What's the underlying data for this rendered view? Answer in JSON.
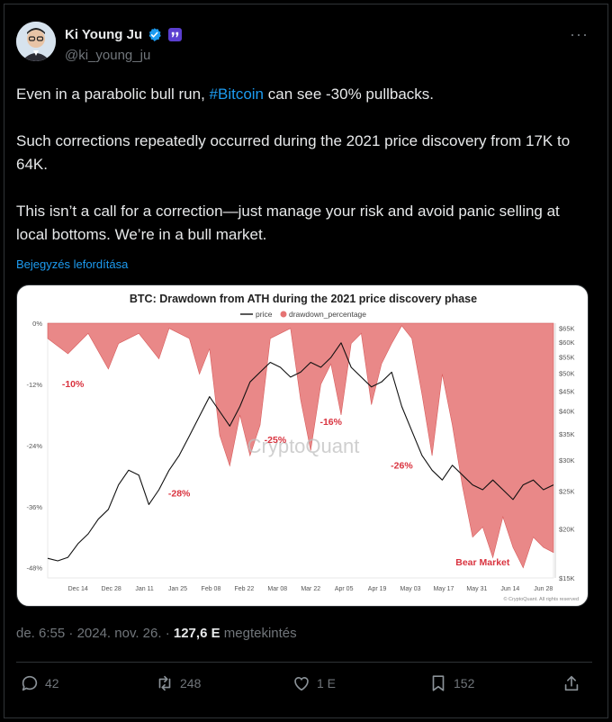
{
  "author": {
    "name": "Ki Young Ju",
    "handle": "@ki_young_ju"
  },
  "tweet": {
    "line1_before": "Even in a parabolic bull run, ",
    "hashtag": "#Bitcoin",
    "line1_after": " can see -30% pullbacks.",
    "paragraph2": "Such corrections repeatedly occurred during the 2021 price discovery from 17K to 64K.",
    "paragraph3": "This isn’t a call for a correction—just manage your risk and avoid panic selling at local bottoms. We’re in a bull market.",
    "translate_label": "Bejegyzés lefordítása"
  },
  "meta": {
    "time": "de. 6:55",
    "sep1": " · ",
    "date": "2024. nov. 26.",
    "sep2": " · ",
    "views": "127,6 E",
    "views_label": " megtekintés"
  },
  "actions": {
    "replies": "42",
    "reposts": "248",
    "likes": "1 E",
    "bookmarks": "152"
  },
  "colors": {
    "accent": "#1d9bf0",
    "drawdown": "#e57373",
    "annotation": "#d9333f"
  },
  "chart_data": {
    "type": "area",
    "title": "BTC: Drawdown from ATH during the 2021 price discovery phase",
    "legend": [
      "price",
      "drawdown_percentage"
    ],
    "legend_placement": "top-center",
    "watermark": "CryptoQuant",
    "footer": "© CryptoQuant. All rights reserved",
    "x_ticks": [
      "Dec 14",
      "Dec 28",
      "Jan 11",
      "Jan 25",
      "Feb 08",
      "Feb 22",
      "Mar 08",
      "Mar 22",
      "Apr 05",
      "Apr 19",
      "May 03",
      "May 17",
      "May 31",
      "Jun 14",
      "Jun 28"
    ],
    "y_left_ticks": [
      "0%",
      "-12%",
      "-24%",
      "-36%",
      "-48%"
    ],
    "y_left_range": [
      -50,
      0
    ],
    "y_right_ticks": [
      "$65K",
      "$60K",
      "$55K",
      "$50K",
      "$45K",
      "$40K",
      "$35K",
      "$30K",
      "$25K",
      "$20K",
      "$15K"
    ],
    "annotations": [
      "-10%",
      "-28%",
      "-25%",
      "-16%",
      "-26%",
      "Bear Market"
    ],
    "drawdown_series": [
      [
        0,
        -3
      ],
      [
        4,
        -6
      ],
      [
        8,
        -2
      ],
      [
        12,
        -9
      ],
      [
        14,
        -4
      ],
      [
        18,
        -2
      ],
      [
        22,
        -7
      ],
      [
        24,
        -1
      ],
      [
        28,
        -3
      ],
      [
        30,
        -10
      ],
      [
        32,
        -5
      ],
      [
        34,
        -22
      ],
      [
        36,
        -28
      ],
      [
        38,
        -18
      ],
      [
        40,
        -26
      ],
      [
        42,
        -20
      ],
      [
        44,
        -3
      ],
      [
        48,
        -1
      ],
      [
        50,
        -15
      ],
      [
        52,
        -25
      ],
      [
        54,
        -12
      ],
      [
        56,
        -8
      ],
      [
        58,
        -18
      ],
      [
        60,
        -4
      ],
      [
        62,
        -2
      ],
      [
        64,
        -16
      ],
      [
        66,
        -8
      ],
      [
        68,
        -4
      ],
      [
        70,
        -0.5
      ],
      [
        72,
        -3
      ],
      [
        74,
        -14
      ],
      [
        76,
        -26
      ],
      [
        78,
        -10
      ],
      [
        80,
        -20
      ],
      [
        82,
        -32
      ],
      [
        84,
        -42
      ],
      [
        86,
        -40
      ],
      [
        88,
        -46
      ],
      [
        90,
        -38
      ],
      [
        92,
        -44
      ],
      [
        94,
        -48
      ],
      [
        96,
        -42
      ],
      [
        98,
        -44
      ],
      [
        100,
        -45
      ]
    ],
    "price_series": [
      [
        0,
        19
      ],
      [
        2,
        18.5
      ],
      [
        4,
        19.2
      ],
      [
        6,
        22
      ],
      [
        8,
        24
      ],
      [
        10,
        27
      ],
      [
        12,
        29
      ],
      [
        14,
        34
      ],
      [
        16,
        37
      ],
      [
        18,
        36
      ],
      [
        20,
        30
      ],
      [
        22,
        33
      ],
      [
        24,
        37
      ],
      [
        26,
        40
      ],
      [
        28,
        44
      ],
      [
        30,
        48
      ],
      [
        32,
        52
      ],
      [
        34,
        49
      ],
      [
        36,
        46
      ],
      [
        38,
        50
      ],
      [
        40,
        55
      ],
      [
        42,
        57
      ],
      [
        44,
        59
      ],
      [
        46,
        58
      ],
      [
        48,
        56
      ],
      [
        50,
        57
      ],
      [
        52,
        59
      ],
      [
        54,
        58
      ],
      [
        56,
        60
      ],
      [
        58,
        63
      ],
      [
        60,
        58
      ],
      [
        62,
        56
      ],
      [
        64,
        54
      ],
      [
        66,
        55
      ],
      [
        68,
        57
      ],
      [
        70,
        50
      ],
      [
        72,
        45
      ],
      [
        74,
        40
      ],
      [
        76,
        37
      ],
      [
        78,
        35
      ],
      [
        80,
        38
      ],
      [
        82,
        36
      ],
      [
        84,
        34
      ],
      [
        86,
        33
      ],
      [
        88,
        35
      ],
      [
        90,
        33
      ],
      [
        92,
        31
      ],
      [
        94,
        34
      ],
      [
        96,
        35
      ],
      [
        98,
        33
      ],
      [
        100,
        34
      ]
    ],
    "x_range": [
      0,
      100
    ],
    "price_range": [
      15,
      67
    ]
  }
}
